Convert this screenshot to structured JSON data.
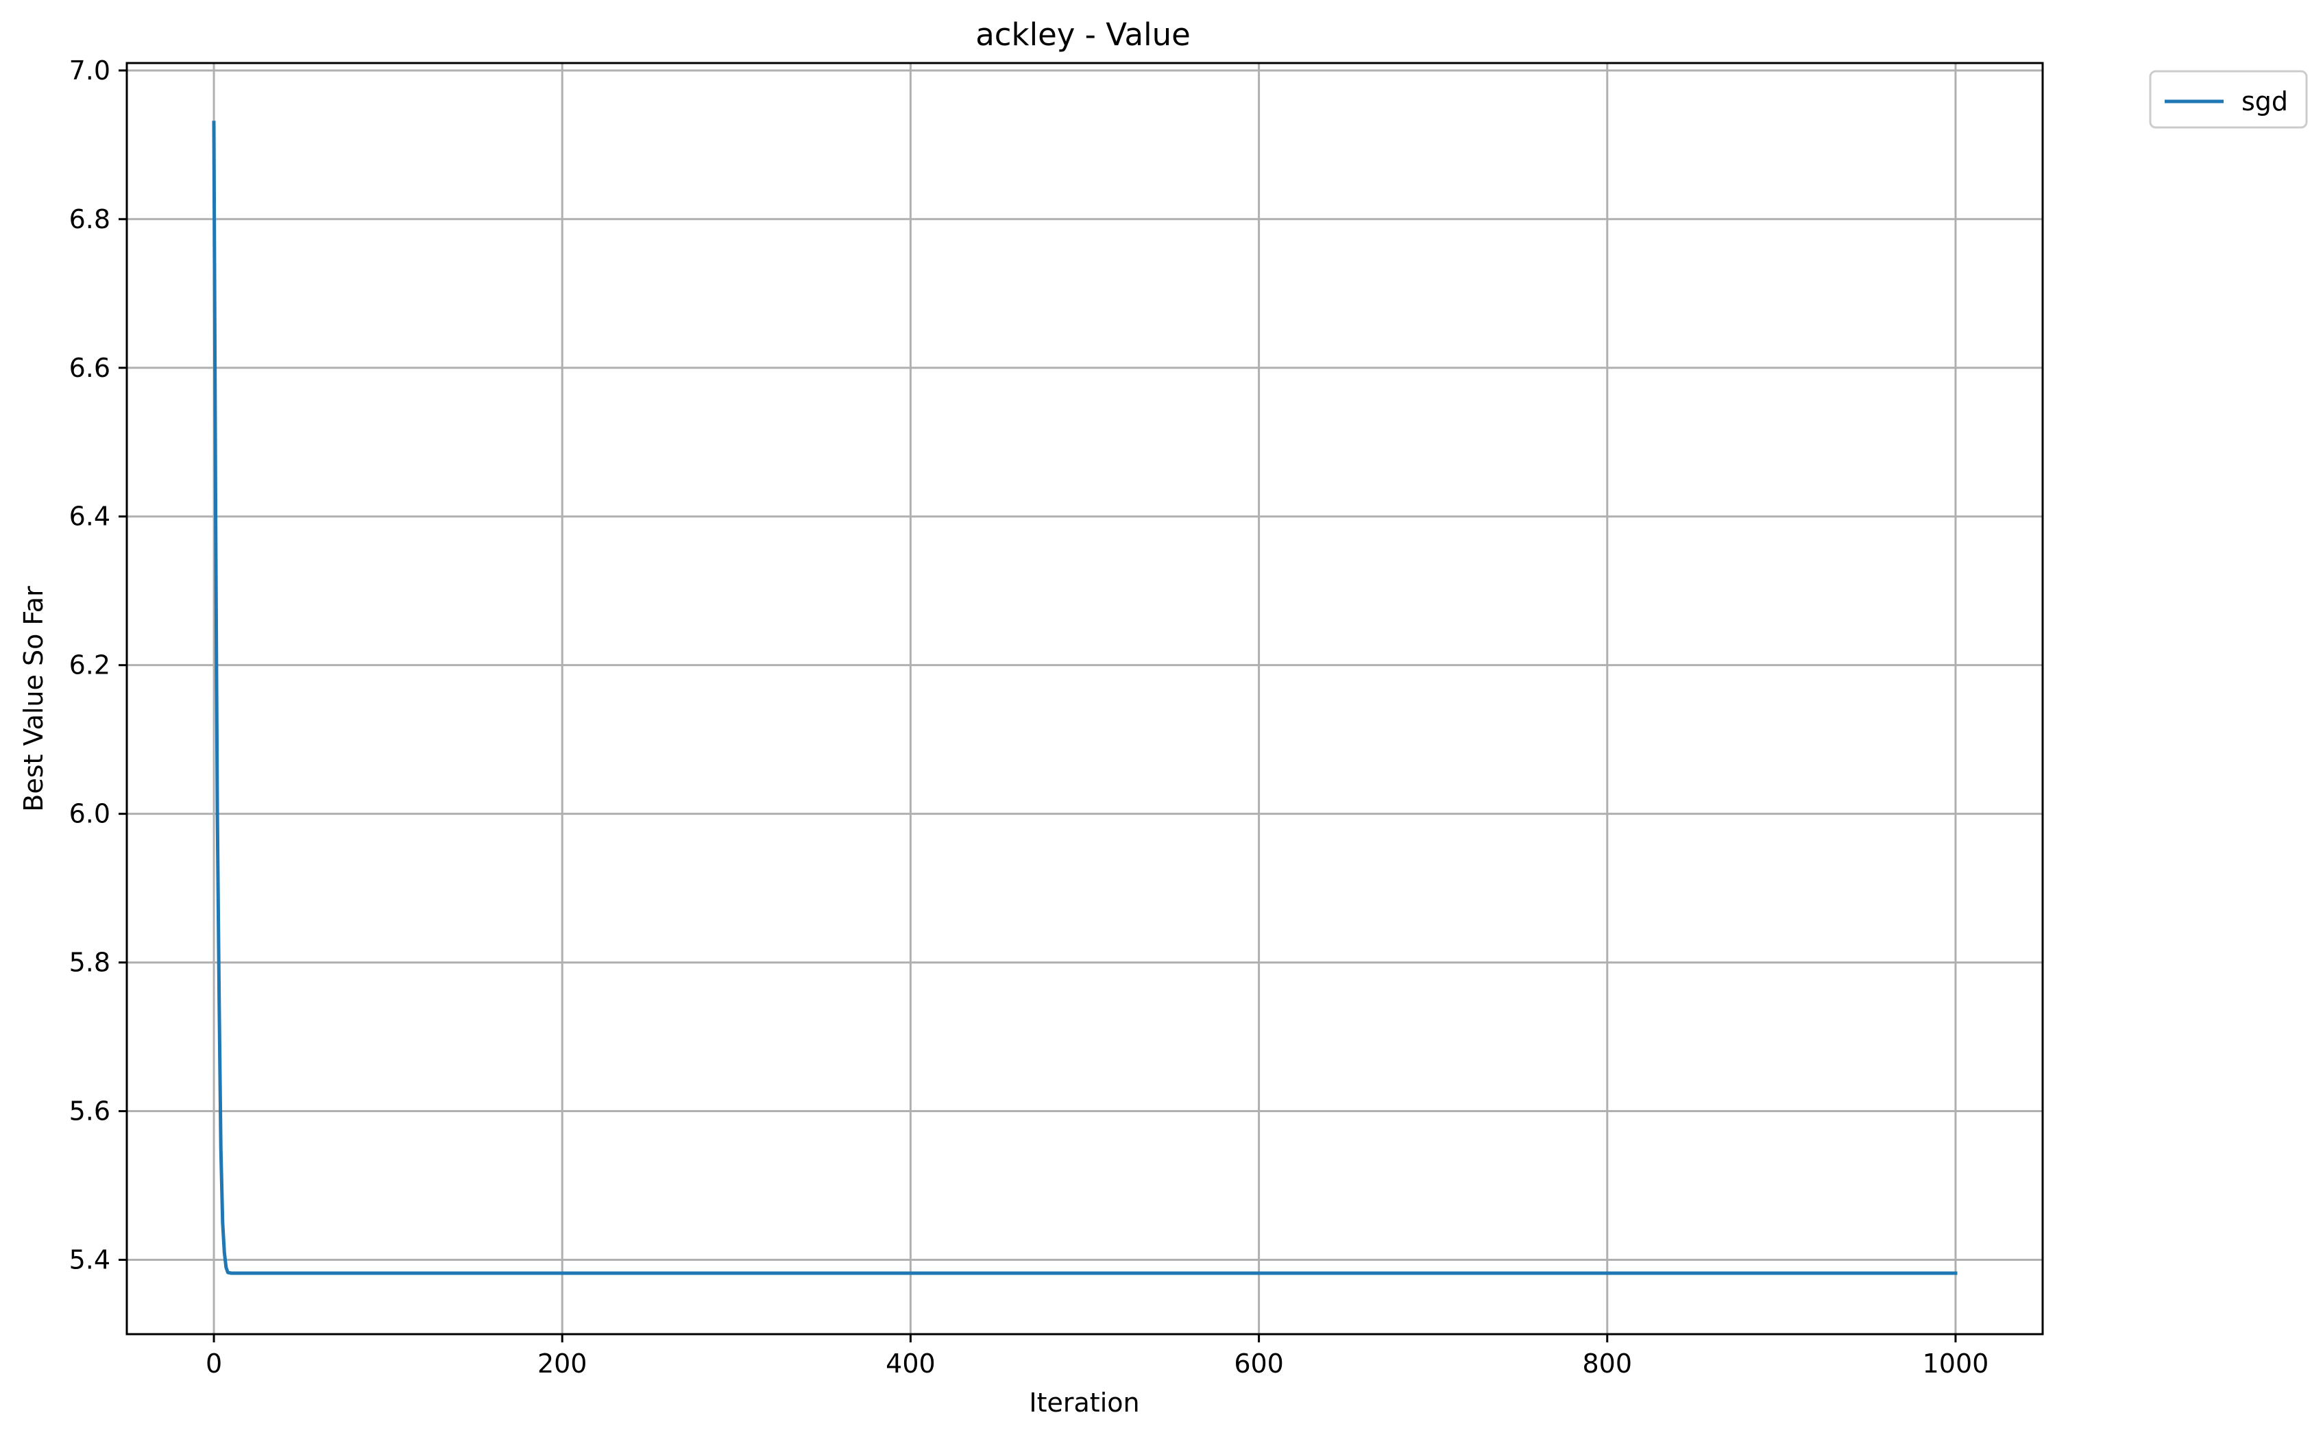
{
  "chart_data": {
    "type": "line",
    "title": "ackley - Value",
    "xlabel": "Iteration",
    "ylabel": "Best Value So Far",
    "xlim": [
      -50,
      1050
    ],
    "ylim": [
      5.3,
      7.01
    ],
    "xticks": [
      0,
      200,
      400,
      600,
      800,
      1000
    ],
    "xtick_labels": [
      "0",
      "200",
      "400",
      "600",
      "800",
      "1000"
    ],
    "yticks": [
      5.4,
      5.6,
      5.8,
      6.0,
      6.2,
      6.4,
      6.6,
      6.8,
      7.0
    ],
    "ytick_labels": [
      "5.4",
      "5.6",
      "5.8",
      "6.0",
      "6.2",
      "6.4",
      "6.6",
      "6.8",
      "7.0"
    ],
    "grid": true,
    "legend_position": "outside-top-right",
    "series": [
      {
        "name": "sgd",
        "color": "#1f77b4",
        "x": [
          0,
          1,
          2,
          3,
          4,
          5,
          6,
          7,
          8,
          10,
          15,
          20,
          50,
          100,
          200,
          400,
          600,
          800,
          1000
        ],
        "y": [
          6.93,
          6.4,
          6.0,
          5.75,
          5.55,
          5.45,
          5.41,
          5.39,
          5.383,
          5.382,
          5.382,
          5.382,
          5.382,
          5.382,
          5.382,
          5.382,
          5.382,
          5.382,
          5.382
        ]
      }
    ]
  }
}
